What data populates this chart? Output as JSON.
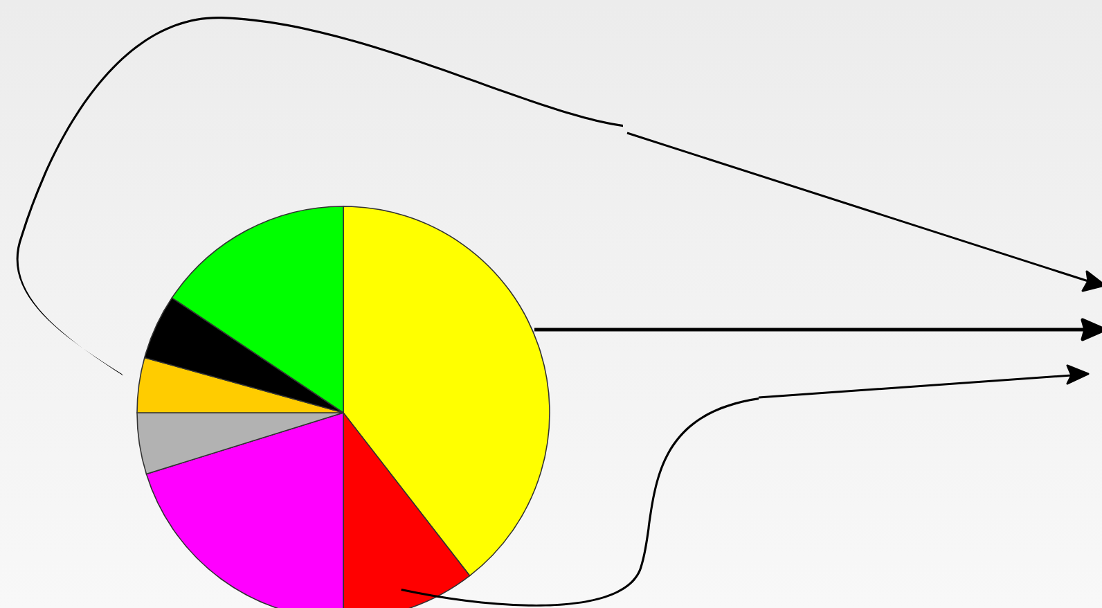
{
  "chart_data": {
    "type": "pie",
    "categories": [
      null,
      null,
      null,
      null,
      null,
      null,
      null
    ],
    "values": [
      39.5,
      10.5,
      20.2,
      4.8,
      4.3,
      5.1,
      15.6
    ],
    "colors": [
      "#ffff00",
      "#ff0000",
      "#ff00ff",
      "#b2b2b2",
      "#ffcc00",
      "#000000",
      "#00ff00"
    ]
  }
}
